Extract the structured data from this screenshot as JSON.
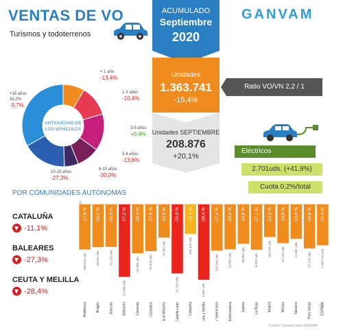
{
  "header": {
    "title": "VENTAS DE VO",
    "subtitle": "Turismos y todoterrenos"
  },
  "banner": {
    "line1": "ACUMULADO",
    "line2": "Septiembre",
    "line3": "2020"
  },
  "units_ytd": {
    "label": "Unidades",
    "value": "1.363.741",
    "change": "-15,4%"
  },
  "units_month": {
    "label": "Unidades SEPTIEMBRE",
    "value": "208.876",
    "change": "+20,1%"
  },
  "ratio": "Ratio VO/VN 2,2 / 1",
  "logo": "GANVAM",
  "electric": {
    "label": "Eléctricos",
    "units": "2.701uds. (+41,9%)",
    "share": "Cuota 0,2%/total"
  },
  "donut": {
    "center_line1": "ANTIGÜEDAD DE",
    "center_line2": "LOS VEHÍCULOS",
    "segments": [
      {
        "label": "< 1 año",
        "share": "",
        "change": "-13,4%"
      },
      {
        "label": "1-3 años",
        "share": "",
        "change": "-10,4%"
      },
      {
        "label": "3-5 años",
        "share": "",
        "change": "+0,4%"
      },
      {
        "label": "5-8 años",
        "share": "",
        "change": "-13,6%"
      },
      {
        "label": "8-10 años",
        "share": "",
        "change": "-30,0%"
      },
      {
        "label": "10-15 años",
        "share": "",
        "change": "-27,3%"
      },
      {
        "label": "+15 años",
        "share": "33,2%",
        "change": "-9,7%"
      }
    ]
  },
  "section_title": "POR COMUNIDADES AUTÓNOMAS",
  "highlights": [
    {
      "name": "CATALUÑA",
      "change": "-11,1%"
    },
    {
      "name": "BALEARES",
      "change": "-27,3%"
    },
    {
      "name": "CEUTA Y MELILLA",
      "change": "-28,4%"
    }
  ],
  "source": "Fuente: Ganvam para GANVAM",
  "colors": {
    "blue": "#2a7fc2",
    "orange": "#f08c1e",
    "red": "#e8241c",
    "yellow": "#f5b522",
    "green": "#5a8c2c",
    "lime": "#cfe06a"
  },
  "chart_data": [
    {
      "type": "pie",
      "title": "ANTIGÜEDAD DE LOS VEHÍCULOS",
      "categories": [
        "< 1 año",
        "1-3 años",
        "3-5 años",
        "5-8 años",
        "8-10 años",
        "10-15 años",
        "+15 años"
      ],
      "values": [
        8.5,
        12.0,
        14.5,
        9.0,
        5.5,
        17.3,
        33.2
      ],
      "changes": [
        "-13,4%",
        "-10,4%",
        "+0,4%",
        "-13,6%",
        "-30,0%",
        "-27,3%",
        "-9,7%"
      ],
      "colors": [
        "#f08c1e",
        "#e63b52",
        "#c41f7a",
        "#7a1f5c",
        "#3b2a66",
        "#2a5fb0",
        "#2a8fd8"
      ]
    },
    {
      "type": "bar",
      "title": "POR COMUNIDADES AUTÓNOMAS",
      "categories": [
        "Andalucía",
        "Aragón",
        "Asturias",
        "Baleares",
        "Canarias",
        "Cantabria",
        "Castilla la Mancha",
        "Castilla León",
        "Cataluña",
        "Ceuta y Melilla",
        "Com. Valenciana",
        "Extremadura",
        "Galicia",
        "La Rioja",
        "Madrid",
        "Murcia",
        "Navarra",
        "País Vasco",
        "ESPAÑA"
      ],
      "values": [
        -17.0,
        -16.1,
        -16.0,
        -27.3,
        -18.4,
        -17.6,
        -12.5,
        -26.0,
        -11.1,
        -28.4,
        -17.4,
        -16.9,
        -14.8,
        -17.1,
        -12.3,
        -14.6,
        -13.0,
        -16.6,
        -15.4
      ],
      "value_labels": [
        "-17,0 %",
        "-16,1 %",
        "-16,0 %",
        "-27,3 %",
        "-18,4 %",
        "-17,6 %",
        "-12,5 %",
        "-26,0 %",
        "-11,1 %",
        "-28,4 %",
        "-17,4 %",
        "-16,9 %",
        "-14,8 %",
        "-17,1 %",
        "-12,3 %",
        "-14,6 %",
        "-13,0 %",
        "-16,6 %",
        "-15,4 %"
      ],
      "units": [
        "208.241 uds.",
        "34.633 uds.",
        "23.126 uds.",
        "23.936 uds.",
        "54.205 uds.",
        "15.023 uds.",
        "70.305 uds.",
        "87.703 uds.",
        "225.422 uds.",
        "4.002 uds.",
        "163.500 uds.",
        "23.401 uds.",
        "83.857 uds.",
        "8.032 uds.",
        "189.833 uds.",
        "47.125 uds.",
        "21.467 uds.",
        "57.125 uds.",
        "1.363.741 uds."
      ],
      "highlight": [
        "default",
        "default",
        "default",
        "red",
        "default",
        "default",
        "default",
        "red",
        "yellow",
        "red",
        "default",
        "default",
        "default",
        "default",
        "default",
        "default",
        "default",
        "default",
        "default"
      ],
      "ylim": [
        -30,
        0
      ],
      "colors": {
        "default": "#f08c1e",
        "red": "#e8241c",
        "yellow": "#f5b522"
      }
    }
  ]
}
